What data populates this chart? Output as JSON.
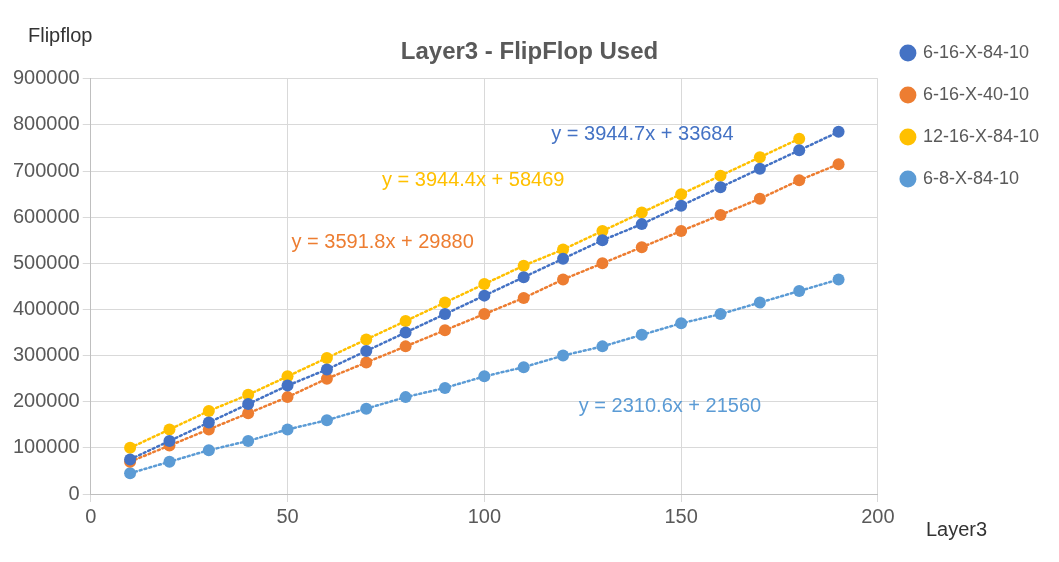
{
  "chart_data": {
    "type": "line",
    "title": "Layer3 - FlipFlop Used",
    "xlabel": "Layer3",
    "ylabel": "Flipflop",
    "x": [
      10,
      20,
      30,
      40,
      50,
      60,
      70,
      80,
      90,
      100,
      110,
      120,
      130,
      140,
      150,
      160,
      170,
      180,
      190
    ],
    "series": [
      {
        "name": "6-16-X-84-10",
        "color": "#4472c4",
        "values": [
          75000,
          115000,
          155000,
          195000,
          235000,
          270000,
          310000,
          350000,
          390000,
          430000,
          470000,
          510000,
          550000,
          585000,
          625000,
          665000,
          705000,
          745000,
          785000
        ]
      },
      {
        "name": "6-16-X-40-10",
        "color": "#ed7d31",
        "values": [
          70000,
          105000,
          140000,
          175000,
          210000,
          250000,
          285000,
          320000,
          355000,
          390000,
          425000,
          465000,
          500000,
          535000,
          570000,
          605000,
          640000,
          680000,
          715000
        ]
      },
      {
        "name": "12-16-X-84-10",
        "color": "#ffc000",
        "values": [
          100000,
          140000,
          180000,
          215000,
          255000,
          295000,
          335000,
          375000,
          415000,
          455000,
          495000,
          530000,
          570000,
          610000,
          650000,
          690000,
          730000,
          770000,
          null
        ]
      },
      {
        "name": "6-8-X-84-10",
        "color": "#5b9bd5",
        "values": [
          45000,
          70000,
          95000,
          115000,
          140000,
          160000,
          185000,
          210000,
          230000,
          255000,
          275000,
          300000,
          320000,
          345000,
          370000,
          390000,
          415000,
          440000,
          465000
        ]
      }
    ],
    "annotations": [
      "y = 3944.7x + 33684",
      "y = 3591.8x + 29880",
      "y = 3944.4x + 58469",
      "y = 2310.6x + 21560"
    ],
    "xlim": [
      0,
      200
    ],
    "xticks": [
      0,
      50,
      100,
      150,
      200
    ],
    "ylim": [
      0,
      900000
    ],
    "yticks": [
      0,
      100000,
      200000,
      300000,
      400000,
      500000,
      600000,
      700000,
      800000,
      900000
    ],
    "grid": true,
    "legend": "right",
    "marker": "circle",
    "line_style": "dotted"
  }
}
